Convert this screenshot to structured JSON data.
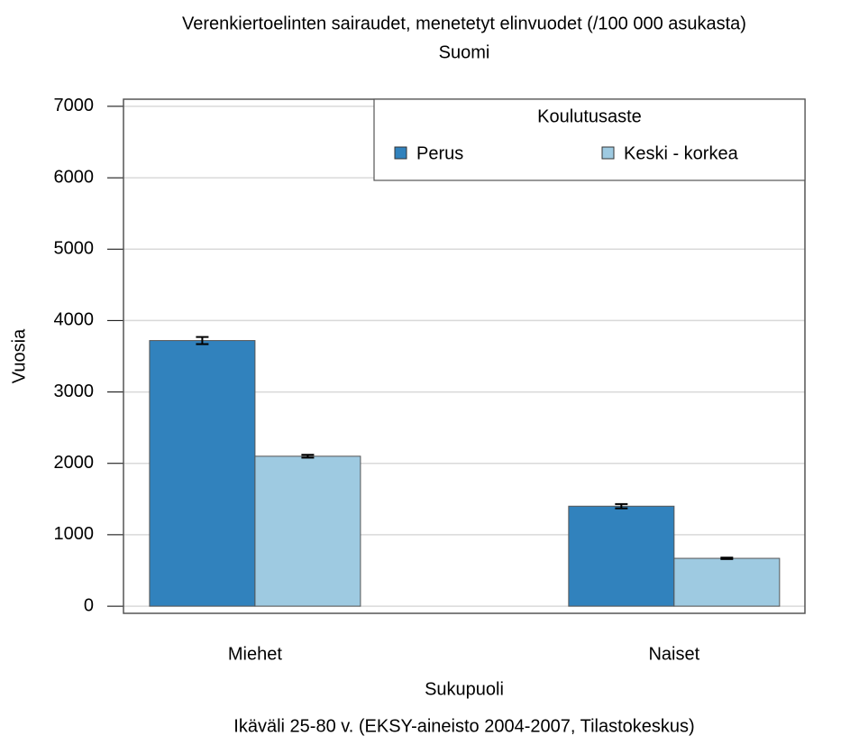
{
  "chart_data": {
    "type": "bar",
    "title": "Verenkiertoelinten sairaudet, menetetyt elinvuodet (/100 000 asukasta)",
    "subtitle": "Suomi",
    "caption": "Ikäväli 25-80 v. (EKSY-aineisto 2004-2007, Tilastokeskus)",
    "x_label": "Sukupuoli",
    "y_label": "Vuosia",
    "legend_title": "Koulutusaste",
    "legend_position": "top-right",
    "categories": [
      "Miehet",
      "Naiset"
    ],
    "series": [
      {
        "name": "Perus",
        "color": "#3182bd",
        "values": [
          3720,
          1400
        ],
        "errors": [
          50,
          30
        ]
      },
      {
        "name": "Keski - korkea",
        "color": "#9ecae1",
        "values": [
          2100,
          670
        ],
        "errors": [
          20,
          10
        ]
      }
    ],
    "ylim": [
      -100,
      7100
    ],
    "yticks": [
      0,
      1000,
      2000,
      3000,
      4000,
      5000,
      6000,
      7000
    ],
    "grid": true
  }
}
